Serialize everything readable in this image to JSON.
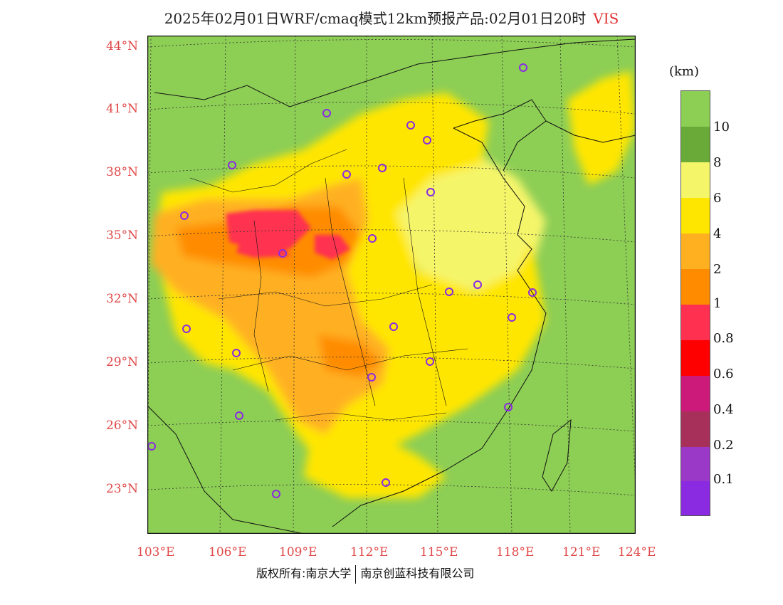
{
  "title": {
    "text": "2025年02月01日WRF/cmaq模式12km预报产品:02月01日20时",
    "variable": "VIS"
  },
  "map": {
    "lat_labels": [
      "44°N",
      "41°N",
      "38°N",
      "35°N",
      "32°N",
      "29°N",
      "26°N",
      "23°N"
    ],
    "lon_labels": [
      "103°E",
      "106°E",
      "109°E",
      "112°E",
      "115°E",
      "118°E",
      "121°E",
      "124°E"
    ],
    "colors": {
      "land": "#8dce55",
      "sea": "#8dce55",
      "low_vis": "#ff8c00",
      "very_low": "#ff3050"
    }
  },
  "legend": {
    "unit": "(km)",
    "levels": [
      "10",
      "8",
      "6",
      "4",
      "2",
      "1",
      "0.8",
      "0.6",
      "0.4",
      "0.2",
      "0.1"
    ],
    "colors": [
      "#8dce55",
      "#6aaa38",
      "#f5f56a",
      "#ffe600",
      "#ffb020",
      "#ff8c00",
      "#ff3050",
      "#ff0000",
      "#cc1a7a",
      "#a6305a",
      "#9a38c8",
      "#8a2be2"
    ]
  },
  "footer": {
    "left": "版权所有:南京大学",
    "right": "南京创蓝科技有限公司"
  }
}
